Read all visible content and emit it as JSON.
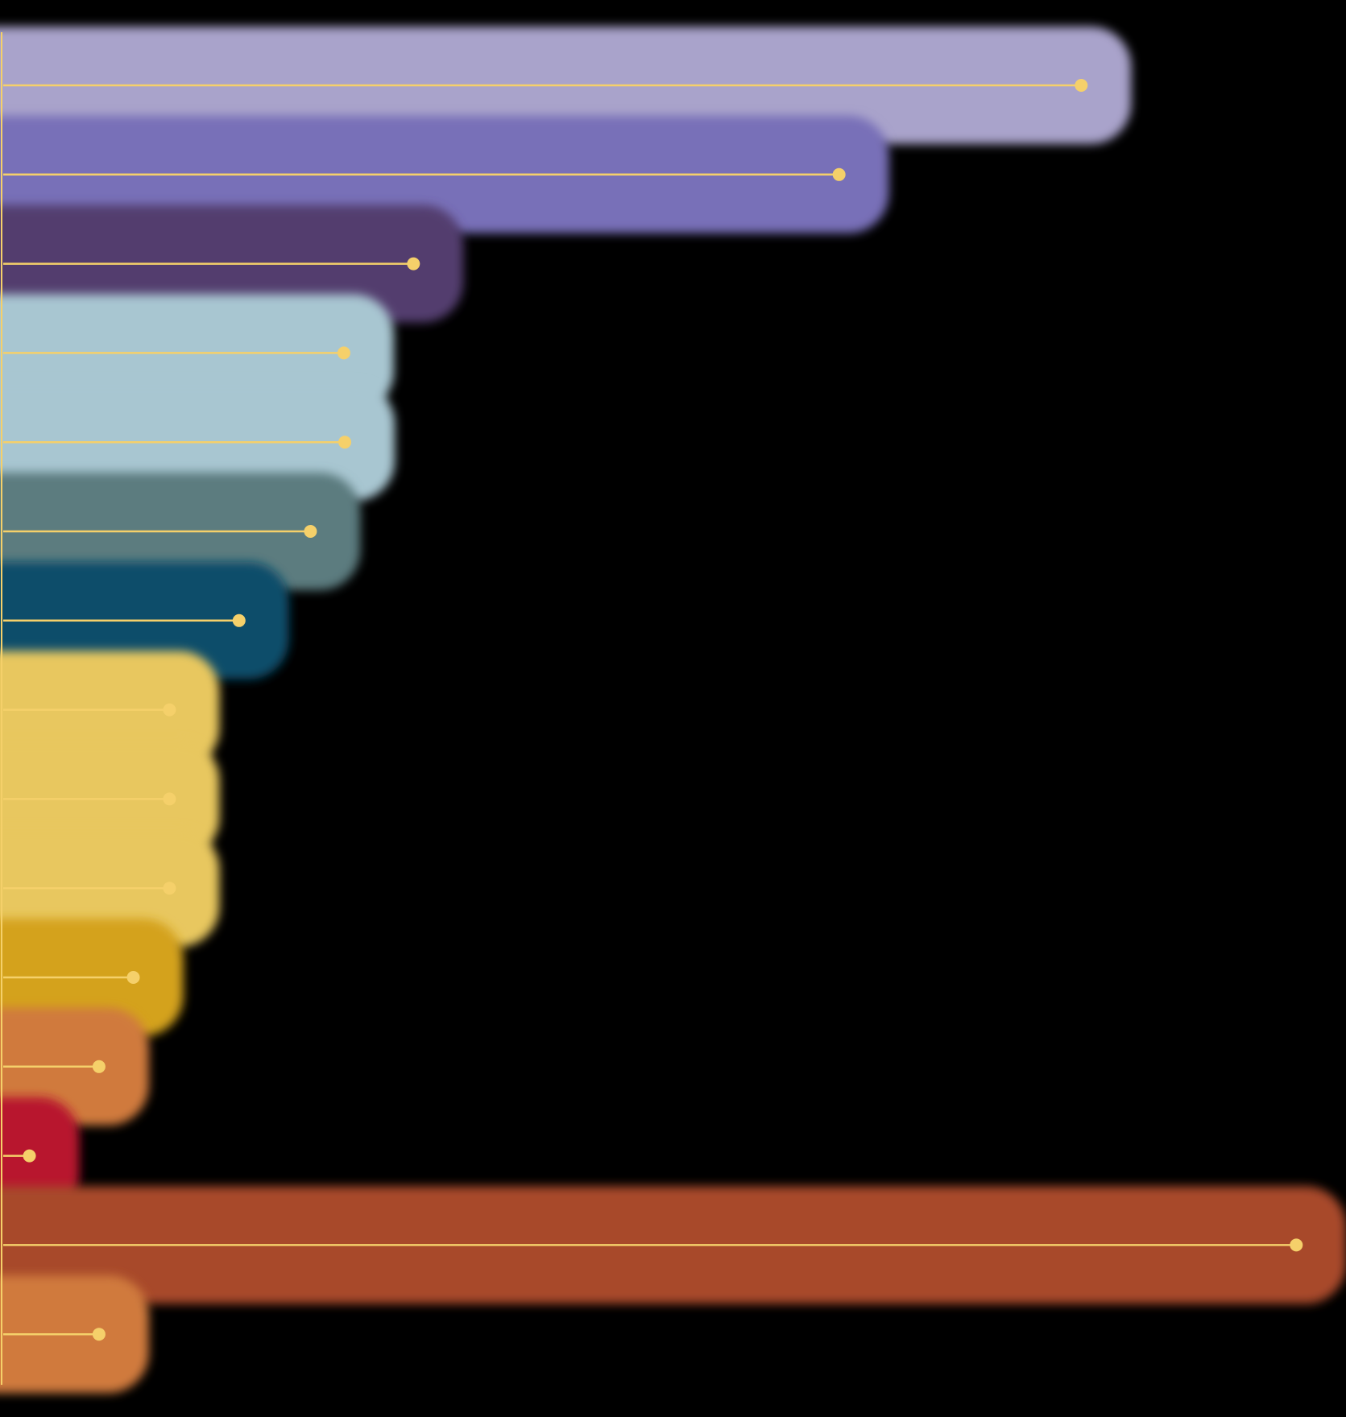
{
  "chart_data": {
    "type": "lollipop-bar",
    "values": [
      1193,
      925,
      454,
      377,
      378,
      340,
      261,
      184,
      184,
      184,
      144,
      106,
      29,
      1431,
      106
    ],
    "colors": [
      "#a9a3cb",
      "#7870b8",
      "#533e6e",
      "#a8c6d1",
      "#a8c6d1",
      "#5c7b7f",
      "#0d4d6b",
      "#e8c75e",
      "#e8c75e",
      "#e8c75e",
      "#d4a21a",
      "#d07a3c",
      "#b8172f",
      "#a84a2c",
      "#d07a3c"
    ],
    "stem_color": "#f5d06a",
    "xlim": [
      0,
      1486
    ]
  }
}
